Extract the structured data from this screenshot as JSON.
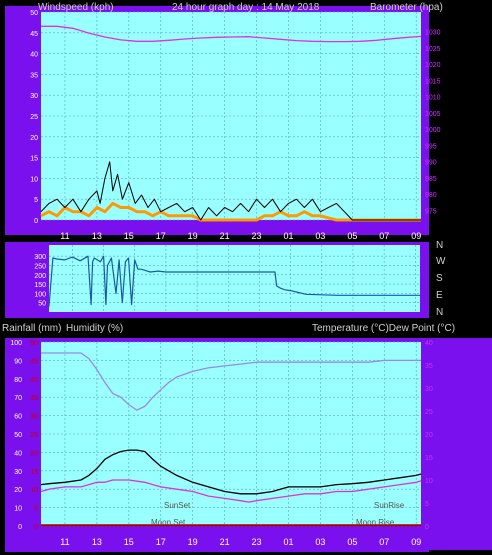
{
  "header_top": {
    "left": "Windspeed (kph)",
    "center": "24 hour graph day : 14 May 2018",
    "right": "Barometer (hpa)"
  },
  "header_bottom": {
    "left1": "Rainfall (mm)",
    "left2": "Humidity (%)",
    "right": "Temperature (°C)Dew Point (°C)"
  },
  "compass": [
    "N",
    "W",
    "S",
    "E",
    "N"
  ],
  "time_ticks": [
    "11",
    "13",
    "15",
    "17",
    "19",
    "21",
    "23",
    "01",
    "03",
    "05",
    "07",
    "09"
  ],
  "annotations": {
    "sunset": "SunSet",
    "sunrise": "SunRise",
    "moonset": "Moon Set",
    "moonrise": "Moon Rise"
  },
  "colors": {
    "frame": "#7a10ee",
    "plot_bg": "#99ffff",
    "grid": "#5aa8b8",
    "wind": "#000000",
    "gust": "#ff9900",
    "barometer": "#dd33dd",
    "direction": "#1a5aa0",
    "humidity": "#9a88ee",
    "temperature": "#000000",
    "dewpoint": "#dd33dd",
    "rain": "#aa0000",
    "tick_left": "#ffffff",
    "tick_right": "#cc33ff",
    "tick_rain": "#cc0000"
  },
  "chart_data": [
    {
      "type": "line",
      "title": "24 hour graph day : 14 May 2018",
      "x_range_hours": [
        9.5,
        33.3
      ],
      "x_ticks": [
        "11",
        "13",
        "15",
        "17",
        "19",
        "21",
        "23",
        "01",
        "03",
        "05",
        "07",
        "09"
      ],
      "y_left": {
        "label": "Windspeed (kph)",
        "range": [
          0,
          50
        ],
        "ticks": [
          0,
          5,
          10,
          15,
          20,
          25,
          30,
          35,
          40,
          45,
          50
        ]
      },
      "y_right": {
        "label": "Barometer (hpa)",
        "range": [
          972,
          1036
        ],
        "ticks": [
          975,
          980,
          985,
          990,
          995,
          1000,
          1005,
          1010,
          1015,
          1020,
          1025,
          1030
        ]
      },
      "series": [
        {
          "axis": "right",
          "x": [
            9.5,
            10.5,
            11.5,
            12.5,
            13.5,
            14.5,
            15.5,
            16.5,
            17.5,
            18.5,
            19.5,
            20.5,
            21.5,
            22.5,
            23.5,
            24.5,
            25.5,
            26.5,
            27.5,
            28.5,
            29.5,
            30.5,
            31.5,
            32.5,
            33.3
          ],
          "values": [
            1031.6,
            1031.6,
            1031.0,
            1029.5,
            1028.3,
            1027.4,
            1027.0,
            1027.0,
            1027.3,
            1027.7,
            1028.0,
            1028.2,
            1028.3,
            1028.4,
            1028.0,
            1027.6,
            1027.2,
            1027.0,
            1026.9,
            1026.9,
            1027.0,
            1027.3,
            1027.8,
            1028.2,
            1028.5
          ]
        },
        {
          "axis": "left",
          "x": [
            9.5,
            10,
            10.5,
            11,
            11.5,
            12,
            12.5,
            13,
            13.2,
            13.5,
            13.8,
            14,
            14.3,
            14.6,
            15,
            15.4,
            15.8,
            16.2,
            16.6,
            17,
            17.5,
            18,
            18.5,
            19,
            19.5,
            20,
            20.5,
            21,
            21.5,
            22,
            22.5,
            23,
            23.5,
            24,
            24.5,
            25,
            25.5,
            26,
            26.5,
            27,
            27.5,
            28,
            28.5,
            29,
            29.5,
            30,
            31,
            32,
            33.3
          ],
          "values": [
            2,
            4,
            5,
            3,
            5,
            2,
            5,
            7,
            4,
            10,
            14,
            7,
            11,
            5,
            9,
            4,
            6,
            3,
            5,
            2,
            3,
            4,
            2,
            3,
            0,
            3,
            1,
            3,
            2,
            4,
            2,
            5,
            3,
            5,
            2,
            4,
            5,
            3,
            5,
            2,
            3,
            4,
            2,
            0,
            0,
            0,
            0,
            0,
            0
          ]
        },
        {
          "axis": "left",
          "x": [
            9.5,
            10,
            10.5,
            11,
            11.5,
            12,
            12.5,
            13,
            13.5,
            14,
            14.5,
            15,
            15.5,
            16,
            16.5,
            17,
            17.5,
            18,
            18.5,
            19,
            19.5,
            20,
            21,
            22,
            23,
            23.5,
            24,
            24.5,
            25,
            25.5,
            26,
            26.5,
            27,
            28,
            28.5,
            29,
            30,
            31,
            32,
            33.3
          ],
          "values": [
            1,
            2,
            1,
            3,
            2,
            2,
            1,
            3,
            2,
            4,
            3,
            3,
            2,
            2,
            1,
            2,
            1,
            1,
            1,
            1,
            0,
            0,
            0,
            0,
            0,
            1,
            1,
            2,
            1,
            1,
            2,
            1,
            1,
            0,
            0,
            0,
            0,
            0,
            0,
            0
          ]
        }
      ]
    },
    {
      "type": "line",
      "x_range_hours": [
        9.5,
        33.3
      ],
      "y_left": {
        "range": [
          0,
          360
        ],
        "ticks": [
          50,
          100,
          150,
          200,
          250,
          300
        ]
      },
      "y_right_labels": [
        "N",
        "W",
        "S",
        "E",
        "N"
      ],
      "series": [
        {
          "x": [
            9.5,
            9.75,
            10,
            10.5,
            11,
            11.5,
            12,
            12.2,
            12.3,
            12.4,
            12.8,
            13,
            13.15,
            13.25,
            13.5,
            13.8,
            14,
            14.2,
            14.4,
            14.6,
            14.8,
            15,
            15.2,
            15.4,
            15.6,
            15.8,
            16,
            16.5,
            17,
            18,
            20,
            22,
            24,
            24.1,
            24.3,
            24.6,
            25,
            25.5,
            26,
            28,
            30,
            32,
            33.3
          ],
          "values": [
            30,
            290,
            285,
            280,
            295,
            275,
            300,
            40,
            270,
            290,
            270,
            300,
            40,
            250,
            290,
            100,
            280,
            50,
            270,
            290,
            40,
            280,
            230,
            230,
            225,
            220,
            215,
            220,
            215,
            215,
            215,
            215,
            215,
            140,
            130,
            120,
            115,
            105,
            95,
            90,
            90,
            90,
            90
          ]
        }
      ]
    },
    {
      "type": "line",
      "x_range_hours": [
        9.5,
        33.3
      ],
      "y_left": {
        "label": "Humidity (%)",
        "range": [
          0,
          100
        ],
        "ticks": [
          0,
          10,
          20,
          30,
          40,
          50,
          60,
          70,
          80,
          90,
          100
        ]
      },
      "y_rain": {
        "label": "Rainfall (mm)",
        "range": [
          0,
          50
        ],
        "ticks": [
          0,
          5,
          10,
          15,
          20,
          25,
          30,
          35,
          40,
          45,
          50
        ]
      },
      "y_right": {
        "label": "Temperature (°C)Dew Point (°C)",
        "range": [
          0,
          40
        ],
        "ticks": [
          0,
          5,
          10,
          15,
          20,
          25,
          30,
          35,
          40
        ]
      },
      "series": [
        {
          "axis": "left",
          "x": [
            9.5,
            10,
            11,
            12,
            12.5,
            13,
            13.5,
            14,
            14.5,
            15,
            15.5,
            16,
            16.5,
            17,
            17.5,
            18,
            19,
            20,
            21,
            22,
            23,
            24,
            25,
            26,
            27,
            28,
            29,
            30,
            31,
            32,
            33.3
          ],
          "values": [
            94,
            94,
            94,
            94,
            91,
            85,
            78,
            72,
            70,
            66,
            63,
            65,
            70,
            74,
            78,
            81,
            84,
            86,
            87,
            88,
            89,
            89,
            89,
            89,
            89,
            89,
            89,
            89,
            90,
            90,
            90
          ]
        },
        {
          "axis": "right",
          "x": [
            9.5,
            10,
            11,
            12,
            12.5,
            13,
            13.5,
            14,
            14.5,
            15,
            15.5,
            16,
            16.5,
            17,
            17.5,
            18,
            19,
            20,
            21,
            22,
            23,
            24,
            25,
            26,
            27,
            28,
            29,
            30,
            31,
            32,
            33,
            33.3
          ],
          "values": [
            9,
            9.2,
            9.5,
            10,
            11,
            12.5,
            14.5,
            15.5,
            16.2,
            16.5,
            16.5,
            16.2,
            14.5,
            13,
            12,
            11,
            9.5,
            8.5,
            7.5,
            7,
            7,
            7.5,
            8.5,
            8.5,
            8.5,
            9,
            9.2,
            9.5,
            10,
            10.5,
            11,
            11.3
          ]
        },
        {
          "axis": "right",
          "x": [
            9.5,
            10,
            11,
            12,
            12.5,
            13,
            13.5,
            14,
            15,
            16,
            16.5,
            17,
            18,
            19,
            20,
            21,
            22,
            22.5,
            23,
            24,
            25,
            26,
            27,
            28,
            29,
            30,
            31,
            32,
            33,
            33.3
          ],
          "values": [
            7.5,
            8,
            8.5,
            8.5,
            9,
            9.5,
            9.5,
            10,
            10,
            9.5,
            9,
            8.5,
            8,
            7.5,
            6.5,
            6,
            5.5,
            5.2,
            5.5,
            6,
            6.5,
            7,
            7,
            7.5,
            7.5,
            8,
            8.5,
            9,
            9.5,
            9.8
          ]
        },
        {
          "axis": "rain",
          "x": [
            9.5,
            33.3
          ],
          "values": [
            0.2,
            0.2
          ]
        }
      ]
    }
  ]
}
